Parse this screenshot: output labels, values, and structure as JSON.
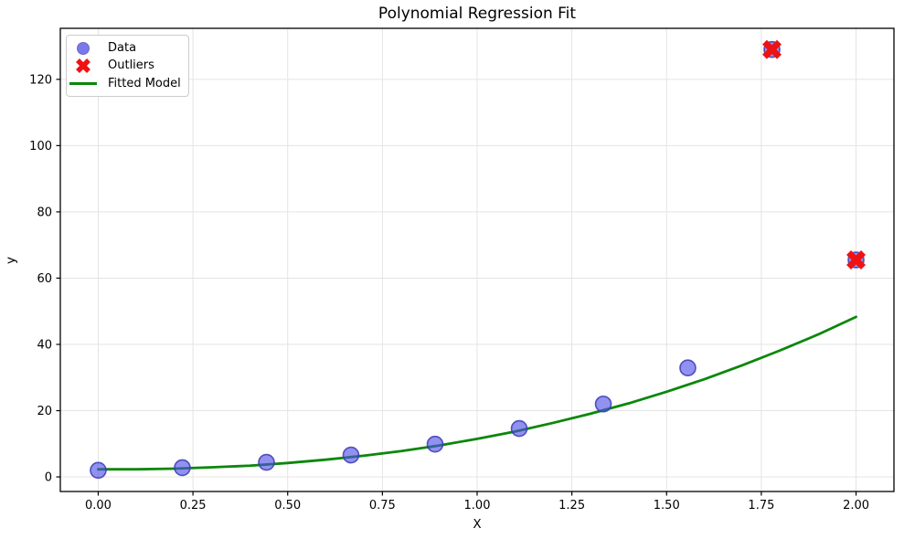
{
  "chart_data": {
    "type": "scatter",
    "title": "Polynomial Regression Fit",
    "xlabel": "X",
    "ylabel": "y",
    "xlim": [
      -0.1,
      2.1
    ],
    "ylim": [
      -4.4,
      135.4
    ],
    "grid": true,
    "grid_color": "#e4e4e4",
    "background": "#ffffff",
    "x_tick_values": [
      0.0,
      0.25,
      0.5,
      0.75,
      1.0,
      1.25,
      1.5,
      1.75,
      2.0
    ],
    "x_tick_labels": [
      "0.00",
      "0.25",
      "0.50",
      "0.75",
      "1.00",
      "1.25",
      "1.50",
      "1.75",
      "2.00"
    ],
    "y_tick_values": [
      0,
      20,
      40,
      60,
      80,
      100,
      120
    ],
    "y_tick_labels": [
      "0",
      "20",
      "40",
      "60",
      "80",
      "100",
      "120"
    ],
    "legend_position": "upper-left",
    "series": [
      {
        "name": "Data",
        "kind": "scatter",
        "marker": "circle",
        "fill": "#4d4de6",
        "fill_opacity": 0.62,
        "edge": "#3a3ab4",
        "marker_radius": 8.5,
        "points": [
          [
            0.0,
            2.0
          ],
          [
            0.222,
            2.8
          ],
          [
            0.444,
            4.4
          ],
          [
            0.667,
            6.6
          ],
          [
            0.889,
            9.9
          ],
          [
            1.111,
            14.6
          ],
          [
            1.333,
            22.0
          ],
          [
            1.556,
            32.9
          ],
          [
            1.778,
            129.0
          ],
          [
            2.0,
            65.5
          ]
        ]
      },
      {
        "name": "Outliers",
        "kind": "scatter",
        "marker": "x",
        "color": "#ee1212",
        "marker_radius": 8,
        "points": [
          [
            1.778,
            129.0
          ],
          [
            2.0,
            65.5
          ]
        ]
      },
      {
        "name": "Fitted Model",
        "kind": "line",
        "color": "#0b870b",
        "width": 2.8,
        "points": [
          [
            0.0,
            2.3
          ],
          [
            0.1,
            2.3
          ],
          [
            0.2,
            2.5
          ],
          [
            0.3,
            2.9
          ],
          [
            0.4,
            3.4
          ],
          [
            0.5,
            4.2
          ],
          [
            0.6,
            5.2
          ],
          [
            0.7,
            6.4
          ],
          [
            0.8,
            7.8
          ],
          [
            0.9,
            9.5
          ],
          [
            1.0,
            11.5
          ],
          [
            1.1,
            13.7
          ],
          [
            1.2,
            16.3
          ],
          [
            1.3,
            19.1
          ],
          [
            1.4,
            22.2
          ],
          [
            1.5,
            25.7
          ],
          [
            1.6,
            29.5
          ],
          [
            1.7,
            33.7
          ],
          [
            1.8,
            38.2
          ],
          [
            1.9,
            43.0
          ],
          [
            2.0,
            48.3
          ]
        ]
      }
    ]
  }
}
